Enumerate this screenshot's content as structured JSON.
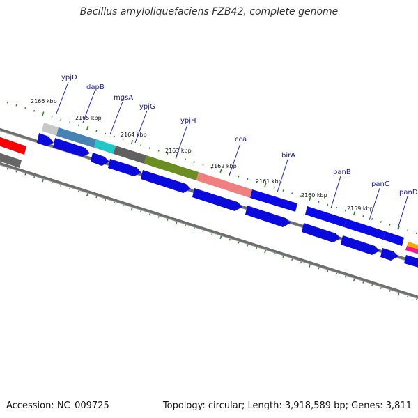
{
  "title": "Bacillus amyloliquefaciens FZB42, complete genome",
  "footer": {
    "accession": "Accession: NC_009725",
    "summary": "Topology: circular; Length: 3,918,589 bp; Genes: 3,811"
  },
  "kbp_labels": [
    "2166 kbp",
    "2165 kbp",
    "2164 kbp",
    "2163 kbp",
    "2162 kbp",
    "2161 kbp",
    "2160 kbp",
    "2159 kbp"
  ],
  "gene_labels": [
    "ypjD",
    "dapB",
    "mgsA",
    "ypjG",
    "ypjH",
    "cca",
    "birA",
    "panB",
    "panC",
    "panD"
  ],
  "colors": {
    "backbone": "#808080",
    "tick": "#2a8a2a",
    "cds": "#0a0adc",
    "label_line": "#2222cc",
    "label_text": "#1a1aa8"
  },
  "feature_colors": [
    "#ff0000",
    "#6a6a6a",
    "#c8c8c8",
    "#4682b4",
    "#20c8c8",
    "#606060",
    "#6b8e23",
    "#f08080",
    "#0a0ae6",
    "#ffa500",
    "#ff1493"
  ]
}
